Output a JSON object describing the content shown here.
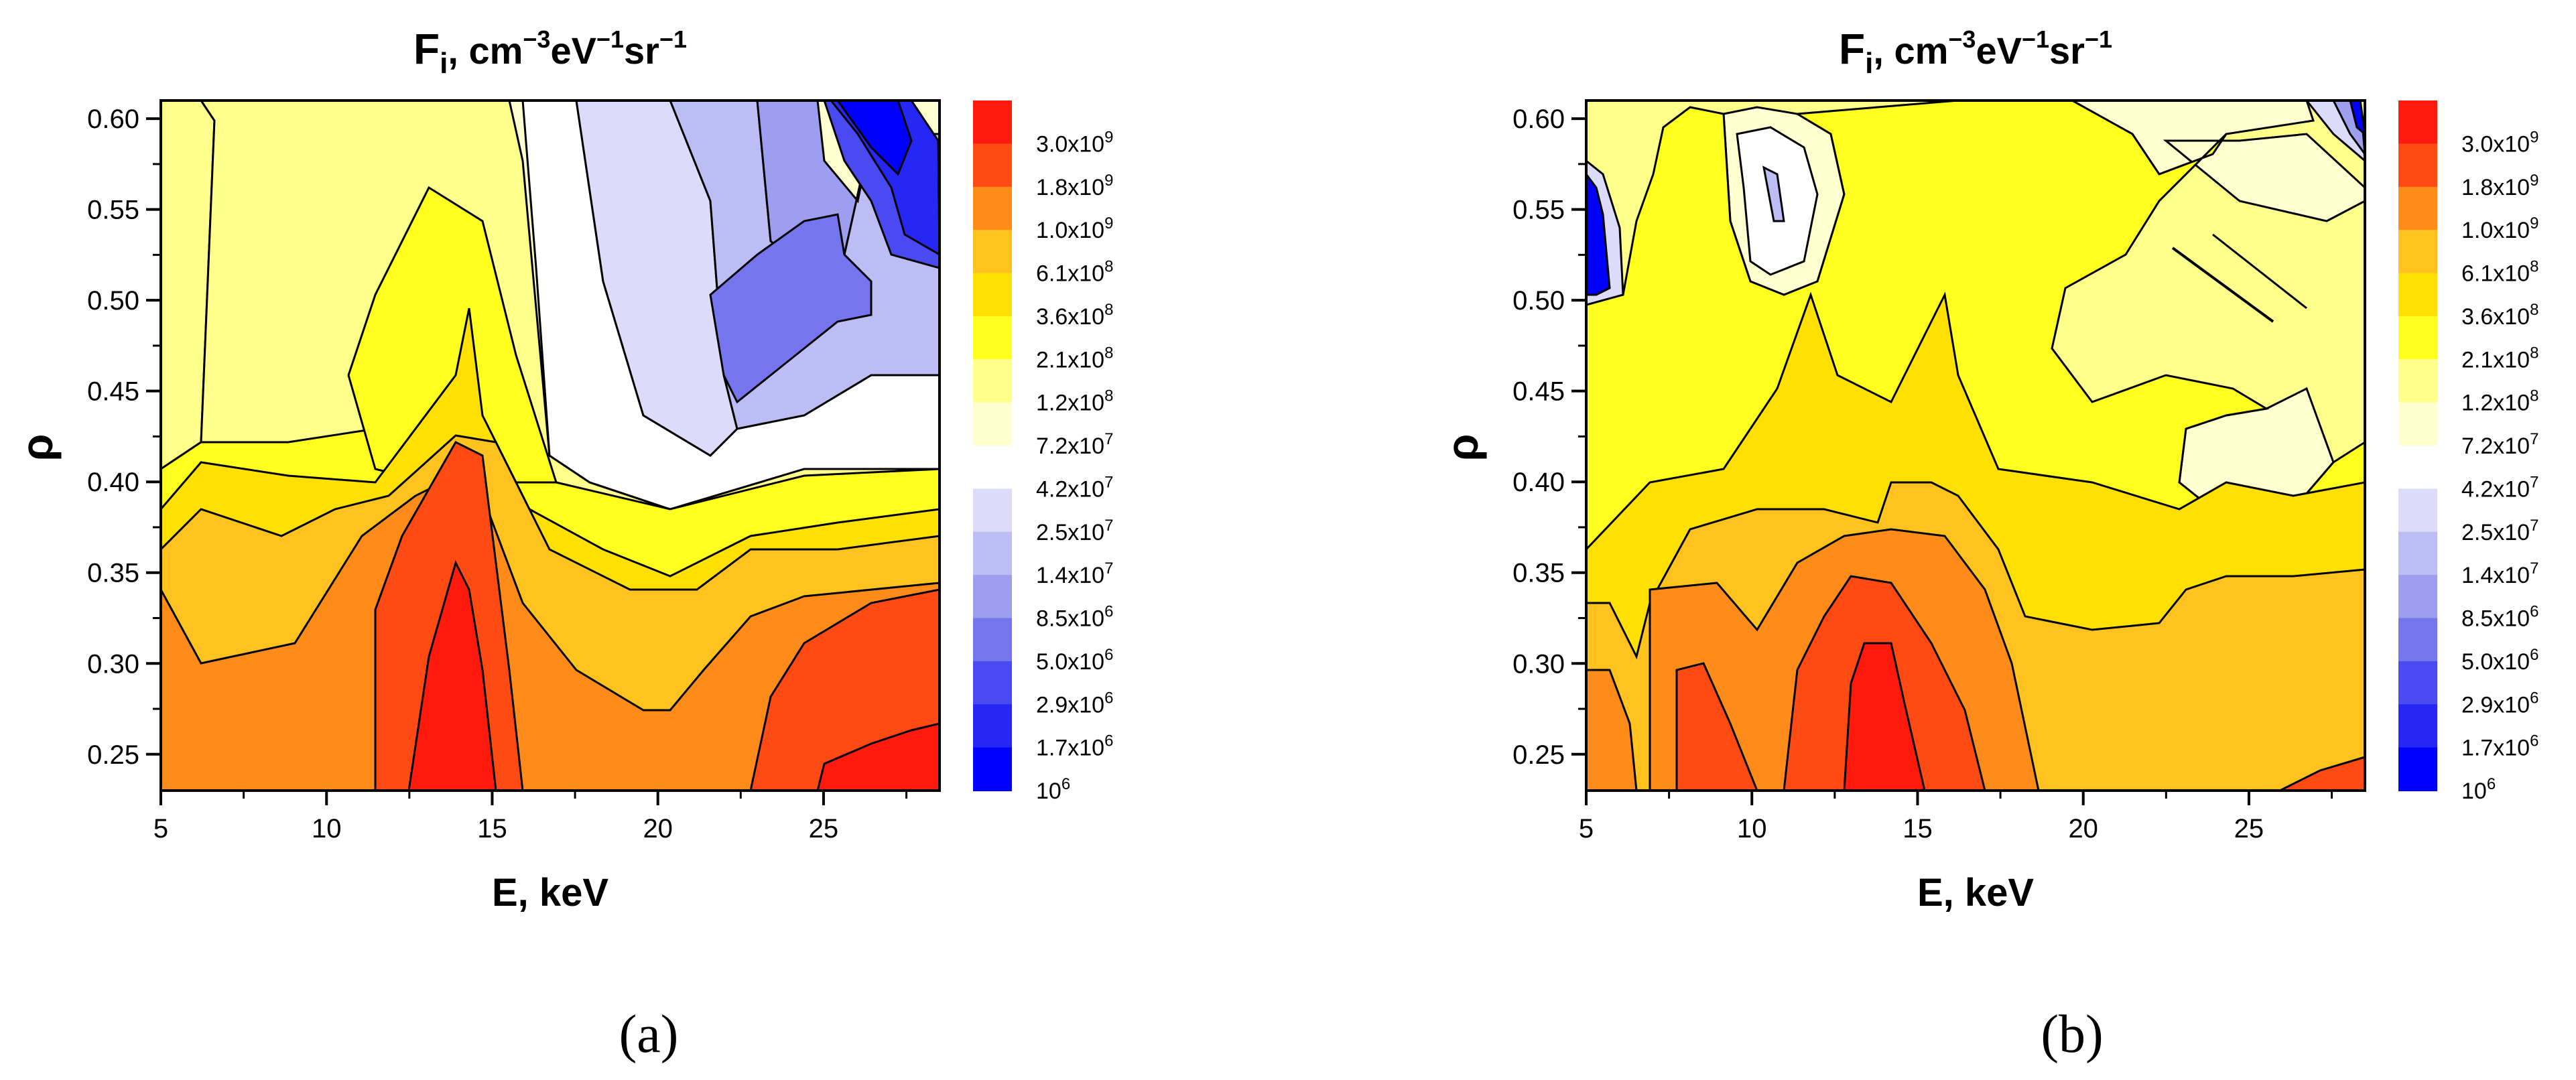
{
  "chart_data": [
    {
      "type": "contour",
      "panel_label": "(a)",
      "title": "F",
      "title_sub": "i",
      "title_units": ", cm",
      "title_units_exp1": "−3",
      "title_units_mid1": "eV",
      "title_units_exp2": "−1",
      "title_units_mid2": "sr",
      "title_units_exp3": "−1",
      "xlabel": "E, keV",
      "ylabel": "ρ",
      "xlim": [
        5,
        28.5
      ],
      "ylim": [
        0.23,
        0.61
      ],
      "xticks": [
        "5",
        "10",
        "15",
        "20",
        "25"
      ],
      "yticks": [
        "0.25",
        "0.30",
        "0.35",
        "0.40",
        "0.45",
        "0.50",
        "0.55",
        "0.60"
      ],
      "colorbar_levels": [
        {
          "mantissa": "3.0x10",
          "exp": "9",
          "color": "#ff1a0d"
        },
        {
          "mantissa": "1.8x10",
          "exp": "9",
          "color": "#ff4a14"
        },
        {
          "mantissa": "1.0x10",
          "exp": "9",
          "color": "#ff8c1a"
        },
        {
          "mantissa": "6.1x10",
          "exp": "8",
          "color": "#ffc21e"
        },
        {
          "mantissa": "3.6x10",
          "exp": "8",
          "color": "#ffe000"
        },
        {
          "mantissa": "2.1x10",
          "exp": "8",
          "color": "#ffff1f"
        },
        {
          "mantissa": "1.2x10",
          "exp": "8",
          "color": "#ffff8c"
        },
        {
          "mantissa": "7.2x10",
          "exp": "7",
          "color": "#ffffd0"
        },
        {
          "mantissa": "4.2x10",
          "exp": "7",
          "color": "#ffffff"
        },
        {
          "mantissa": "2.5x10",
          "exp": "7",
          "color": "#dcdcfa"
        },
        {
          "mantissa": "1.4x10",
          "exp": "7",
          "color": "#bdbdf5"
        },
        {
          "mantissa": "8.5x10",
          "exp": "6",
          "color": "#9e9ef0"
        },
        {
          "mantissa": "5.0x10",
          "exp": "6",
          "color": "#7575ee"
        },
        {
          "mantissa": "2.9x10",
          "exp": "6",
          "color": "#4a4af2"
        },
        {
          "mantissa": "1.7x10",
          "exp": "6",
          "color": "#2626f5"
        },
        {
          "mantissa": "10",
          "exp": "6",
          "color": "#0000ff"
        }
      ],
      "grid": false
    },
    {
      "type": "contour",
      "panel_label": "(b)",
      "title": "F",
      "title_sub": "i",
      "title_units": ", cm",
      "title_units_exp1": "−3",
      "title_units_mid1": "eV",
      "title_units_exp2": "−1",
      "title_units_mid2": "sr",
      "title_units_exp3": "−1",
      "xlabel": "E, keV",
      "ylabel": "ρ",
      "xlim": [
        5,
        28.5
      ],
      "ylim": [
        0.23,
        0.61
      ],
      "xticks": [
        "5",
        "10",
        "15",
        "20",
        "25"
      ],
      "yticks": [
        "0.25",
        "0.30",
        "0.35",
        "0.40",
        "0.45",
        "0.50",
        "0.55",
        "0.60"
      ],
      "colorbar_levels": [
        {
          "mantissa": "3.0x10",
          "exp": "9",
          "color": "#ff1a0d"
        },
        {
          "mantissa": "1.8x10",
          "exp": "9",
          "color": "#ff4a14"
        },
        {
          "mantissa": "1.0x10",
          "exp": "9",
          "color": "#ff8c1a"
        },
        {
          "mantissa": "6.1x10",
          "exp": "8",
          "color": "#ffc21e"
        },
        {
          "mantissa": "3.6x10",
          "exp": "8",
          "color": "#ffe000"
        },
        {
          "mantissa": "2.1x10",
          "exp": "8",
          "color": "#ffff1f"
        },
        {
          "mantissa": "1.2x10",
          "exp": "8",
          "color": "#ffff8c"
        },
        {
          "mantissa": "7.2x10",
          "exp": "7",
          "color": "#ffffd0"
        },
        {
          "mantissa": "4.2x10",
          "exp": "7",
          "color": "#ffffff"
        },
        {
          "mantissa": "2.5x10",
          "exp": "7",
          "color": "#dcdcfa"
        },
        {
          "mantissa": "1.4x10",
          "exp": "7",
          "color": "#bdbdf5"
        },
        {
          "mantissa": "8.5x10",
          "exp": "6",
          "color": "#9e9ef0"
        },
        {
          "mantissa": "5.0x10",
          "exp": "6",
          "color": "#7575ee"
        },
        {
          "mantissa": "2.9x10",
          "exp": "6",
          "color": "#4a4af2"
        },
        {
          "mantissa": "1.7x10",
          "exp": "6",
          "color": "#2626f5"
        },
        {
          "mantissa": "10",
          "exp": "6",
          "color": "#0000ff"
        }
      ],
      "grid": false
    }
  ]
}
